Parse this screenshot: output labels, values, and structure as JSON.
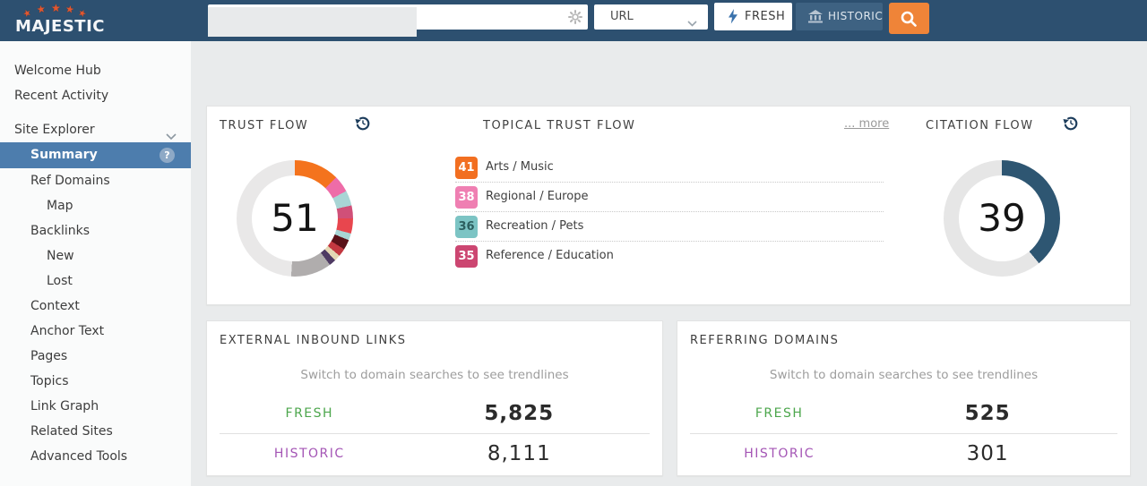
{
  "brand": {
    "name": "MAJESTIC"
  },
  "topbar": {
    "search": {
      "value": "",
      "placeholder": ""
    },
    "scope_select": {
      "value": "URL"
    },
    "fresh_label": "FRESH",
    "historic_label": "HISTORIC"
  },
  "sidebar": {
    "items": [
      {
        "label": "Welcome Hub",
        "level": 0
      },
      {
        "label": "Recent Activity",
        "level": 0
      },
      {
        "label": "Site Explorer",
        "level": 0,
        "expandable": true
      },
      {
        "label": "Summary",
        "level": 1,
        "selected": true,
        "help": true
      },
      {
        "label": "Ref Domains",
        "level": 1
      },
      {
        "label": "Map",
        "level": 2
      },
      {
        "label": "Backlinks",
        "level": 1
      },
      {
        "label": "New",
        "level": 2
      },
      {
        "label": "Lost",
        "level": 2
      },
      {
        "label": "Context",
        "level": 1
      },
      {
        "label": "Anchor Text",
        "level": 1
      },
      {
        "label": "Pages",
        "level": 1
      },
      {
        "label": "Topics",
        "level": 1
      },
      {
        "label": "Link Graph",
        "level": 1
      },
      {
        "label": "Related Sites",
        "level": 1
      },
      {
        "label": "Advanced Tools",
        "level": 1
      }
    ]
  },
  "cards": {
    "trust_flow": {
      "title": "TRUST FLOW",
      "value": "51"
    },
    "topical": {
      "title": "TOPICAL TRUST FLOW",
      "more_label": "... more"
    },
    "citation_flow": {
      "title": "CITATION FLOW",
      "value": "39"
    },
    "external_links": {
      "title": "EXTERNAL INBOUND LINKS",
      "hint": "Switch to domain searches to see trendlines",
      "fresh_label": "FRESH",
      "fresh_value": "5,825",
      "historic_label": "HISTORIC",
      "historic_value": "8,111"
    },
    "referring_domains": {
      "title": "REFERRING DOMAINS",
      "hint": "Switch to domain searches to see trendlines",
      "fresh_label": "FRESH",
      "fresh_value": "525",
      "historic_label": "HISTORIC",
      "historic_value": "301"
    }
  },
  "chart_data": [
    {
      "type": "donut",
      "title": "TRUST FLOW",
      "center_value": 51,
      "scale_max": 100,
      "segments": [
        {
          "name": "arts-music",
          "color": "#f4731d",
          "value": 12.5
        },
        {
          "name": "regional-europe",
          "color": "#ee6ca8",
          "value": 4.7
        },
        {
          "name": "recreation-pets",
          "color": "#a8d5d5",
          "value": 4.2
        },
        {
          "name": "reference-education",
          "color": "#d05078",
          "value": 3.6
        },
        {
          "name": "topic-red",
          "color": "#e8464e",
          "value": 4.2
        },
        {
          "name": "topic-teal-2",
          "color": "#a8d5d5",
          "value": 1.9
        },
        {
          "name": "topic-maroon",
          "color": "#5a1118",
          "value": 2.8
        },
        {
          "name": "topic-dark-red",
          "color": "#c23840",
          "value": 2.2
        },
        {
          "name": "topic-beige",
          "color": "#e3d7b4",
          "value": 1.7
        },
        {
          "name": "topic-purple",
          "color": "#4e3a63",
          "value": 1.9
        },
        {
          "name": "topic-other-gray",
          "color": "#b0adad",
          "value": 11.3
        }
      ],
      "remainder_color": "#e9e8e8"
    },
    {
      "type": "table",
      "title": "TOPICAL TRUST FLOW",
      "rows": [
        {
          "score": 41,
          "topic": "Arts / Music",
          "color": "#f26f21",
          "text_color": "#ffffff"
        },
        {
          "score": 38,
          "topic": "Regional / Europe",
          "color": "#ef7fb2",
          "text_color": "#ffffff"
        },
        {
          "score": 36,
          "topic": "Recreation / Pets",
          "color": "#7cc4c4",
          "text_color": "#2c5f5f"
        },
        {
          "score": 35,
          "topic": "Reference / Education",
          "color": "#cc4671",
          "text_color": "#ffffff"
        }
      ]
    },
    {
      "type": "donut",
      "title": "CITATION FLOW",
      "center_value": 39,
      "scale_max": 100,
      "segments": [
        {
          "name": "citation-flow",
          "color": "#2e5672",
          "value": 39
        }
      ],
      "remainder_color": "#e6e6e6"
    }
  ],
  "colors": {
    "topbar": "#2d5070",
    "accent_orange": "#ef8438",
    "selected_nav": "#4d7dad",
    "fresh_green": "#4ca64c",
    "historic_purple": "#a455b5"
  }
}
